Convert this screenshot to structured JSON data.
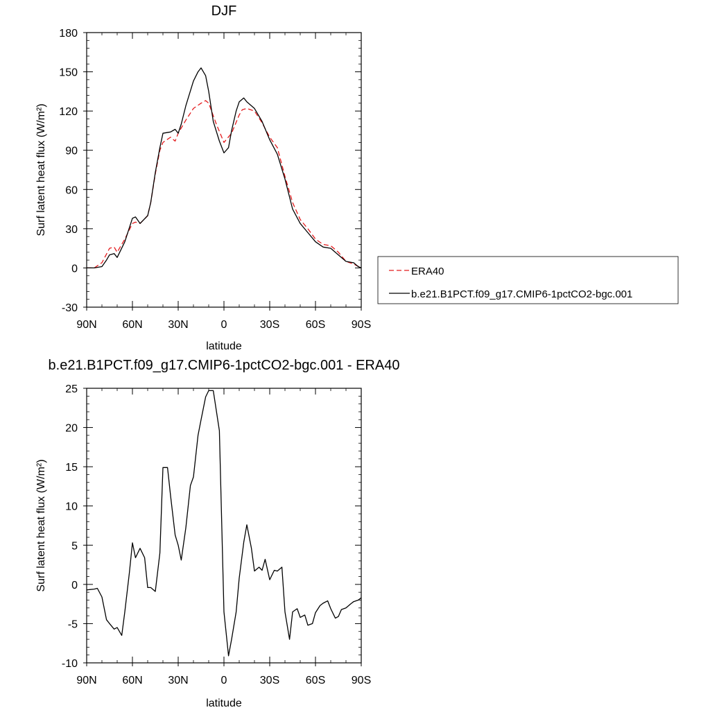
{
  "chart_data": [
    {
      "type": "line",
      "title": "DJF",
      "xlabel": "latitude",
      "ylabel": "Surf latent heat flux (W/m²)",
      "xlim": [
        90,
        -90
      ],
      "ylim": [
        -30,
        180
      ],
      "yticks": [
        -30,
        0,
        30,
        60,
        90,
        120,
        150,
        180
      ],
      "xticks": [
        90,
        60,
        30,
        0,
        -30,
        -60,
        -90
      ],
      "xticklabels": [
        "90N",
        "60N",
        "30N",
        "0",
        "30S",
        "60S",
        "90S"
      ],
      "legend": "right",
      "series": [
        {
          "name": "ERA40",
          "color": "#e41a1c",
          "dash": true,
          "x": [
            90,
            85,
            80,
            75,
            72,
            70,
            65,
            60,
            58,
            55,
            50,
            48,
            45,
            42,
            40,
            35,
            32,
            30,
            25,
            20,
            15,
            12,
            10,
            5,
            0,
            -5,
            -10,
            -12,
            -15,
            -20,
            -25,
            -30,
            -35,
            -40,
            -45,
            -50,
            -55,
            -60,
            -65,
            -70,
            -75,
            -80,
            -85,
            -90
          ],
          "y": [
            0,
            0,
            4,
            15,
            16,
            12,
            22,
            34,
            35,
            34,
            40,
            50,
            72,
            90,
            96,
            100,
            97,
            103,
            113,
            122,
            126,
            128,
            126,
            110,
            96,
            103,
            117,
            121,
            122,
            120,
            111,
            100,
            92,
            70,
            50,
            37,
            30,
            22,
            18,
            17,
            12,
            5,
            3,
            0
          ]
        },
        {
          "name": "b.e21.B1PCT.f09_g17.CMIP6-1pctCO2-bgc.001",
          "color": "#000000",
          "dash": false,
          "x": [
            90,
            85,
            80,
            77,
            75,
            72,
            70,
            65,
            60,
            58,
            55,
            50,
            48,
            45,
            42,
            40,
            35,
            32,
            30,
            28,
            25,
            20,
            17,
            15,
            12,
            10,
            7,
            3,
            0,
            -3,
            -5,
            -8,
            -10,
            -13,
            -15,
            -20,
            -25,
            -30,
            -35,
            -40,
            -45,
            -50,
            -55,
            -60,
            -65,
            -70,
            -75,
            -80,
            -85,
            -88,
            -90
          ],
          "y": [
            0,
            0,
            1,
            6,
            10,
            11,
            8,
            20,
            38,
            39,
            34,
            40,
            50,
            73,
            92,
            103,
            104,
            106,
            103,
            110,
            124,
            143,
            150,
            153,
            147,
            135,
            112,
            97,
            88,
            92,
            105,
            120,
            127,
            130,
            127,
            122,
            112,
            98,
            87,
            68,
            45,
            34,
            27,
            20,
            16,
            15,
            10,
            5,
            4,
            1,
            0
          ]
        }
      ]
    },
    {
      "type": "line",
      "title": "b.e21.B1PCT.f09_g17.CMIP6-1pctCO2-bgc.001 - ERA40",
      "xlabel": "latitude",
      "ylabel": "Surf latent heat flux (W/m²)",
      "xlim": [
        90,
        -90
      ],
      "ylim": [
        -10,
        25
      ],
      "yticks": [
        -10,
        -5,
        0,
        5,
        10,
        15,
        20,
        25
      ],
      "xticks": [
        90,
        60,
        30,
        0,
        -30,
        -60,
        -90
      ],
      "xticklabels": [
        "90N",
        "60N",
        "30N",
        "0",
        "30S",
        "60S",
        "90S"
      ],
      "series": [
        {
          "color": "#000000",
          "dash": false,
          "x": [
            90,
            85,
            83,
            80,
            77,
            75,
            72,
            70,
            67,
            65,
            62,
            60,
            58,
            55,
            52,
            50,
            48,
            45,
            42,
            40,
            37,
            35,
            32,
            30,
            28,
            25,
            22,
            20,
            17,
            15,
            12,
            10,
            7,
            3,
            0,
            -3,
            -5,
            -8,
            -10,
            -13,
            -15,
            -18,
            -20,
            -23,
            -25,
            -27,
            -30,
            -33,
            -35,
            -38,
            -40,
            -43,
            -45,
            -48,
            -50,
            -53,
            -55,
            -58,
            -60,
            -63,
            -65,
            -68,
            -70,
            -73,
            -75,
            -77,
            -80,
            -83,
            -85,
            -88,
            -90
          ],
          "y": [
            -0.7,
            -0.6,
            -0.5,
            -1.6,
            -4.5,
            -5.0,
            -5.7,
            -5.5,
            -6.5,
            -3.5,
            1.5,
            5.3,
            3.4,
            4.6,
            3.4,
            -0.4,
            -0.4,
            -0.9,
            4.0,
            14.9,
            14.9,
            11.3,
            6.3,
            5.0,
            3.1,
            7.2,
            12.6,
            13.7,
            19.0,
            21.0,
            23.9,
            24.7,
            24.7,
            19.6,
            -3.5,
            -9.1,
            -7.0,
            -3.5,
            0.8,
            5.4,
            7.6,
            4.6,
            1.7,
            2.2,
            1.8,
            3.2,
            0.6,
            1.8,
            1.7,
            2.2,
            -3.5,
            -7.0,
            -3.5,
            -3.1,
            -4.2,
            -3.9,
            -5.2,
            -5.0,
            -3.6,
            -2.7,
            -2.4,
            -2.1,
            -3.1,
            -4.3,
            -4.1,
            -3.2,
            -3.0,
            -2.5,
            -2.2,
            -2.0,
            -1.7
          ]
        }
      ]
    }
  ]
}
